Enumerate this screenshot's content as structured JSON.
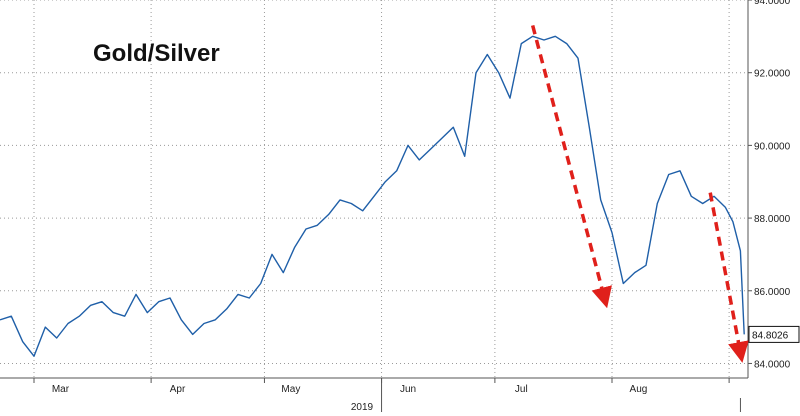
{
  "chart_data": {
    "type": "line",
    "title": "Gold/Silver",
    "year_label": "2019",
    "last_value_label": "84.8026",
    "y_ticks": [
      "94.0000",
      "92.0000",
      "90.0000",
      "88.0000",
      "86.0000",
      "84.0000"
    ],
    "y_tick_values": [
      94,
      92,
      90,
      88,
      86,
      84
    ],
    "ylim": [
      83.6,
      94.0
    ],
    "x_ticks": [
      "Mar",
      "Apr",
      "May",
      "Jun",
      "Jul",
      "Aug"
    ],
    "x_tick_dates": [
      "2019-03-08",
      "2019-04-08",
      "2019-05-08",
      "2019-06-08",
      "2019-07-08",
      "2019-08-08"
    ],
    "xlim": [
      "2019-02-20",
      "2019-09-06"
    ],
    "grid": true,
    "series": [
      {
        "color": "#1f5fa8",
        "x": [
          "2019-02-20",
          "2019-02-23",
          "2019-02-26",
          "2019-03-01",
          "2019-03-04",
          "2019-03-07",
          "2019-03-10",
          "2019-03-13",
          "2019-03-16",
          "2019-03-19",
          "2019-03-22",
          "2019-03-25",
          "2019-03-28",
          "2019-03-31",
          "2019-04-03",
          "2019-04-06",
          "2019-04-09",
          "2019-04-12",
          "2019-04-15",
          "2019-04-18",
          "2019-04-21",
          "2019-04-24",
          "2019-04-27",
          "2019-04-30",
          "2019-05-03",
          "2019-05-06",
          "2019-05-09",
          "2019-05-12",
          "2019-05-15",
          "2019-05-18",
          "2019-05-21",
          "2019-05-24",
          "2019-05-27",
          "2019-05-30",
          "2019-06-02",
          "2019-06-05",
          "2019-06-08",
          "2019-06-11",
          "2019-06-14",
          "2019-06-17",
          "2019-06-20",
          "2019-06-23",
          "2019-06-26",
          "2019-06-29",
          "2019-07-02",
          "2019-07-05",
          "2019-07-08",
          "2019-07-11",
          "2019-07-14",
          "2019-07-17",
          "2019-07-20",
          "2019-07-23",
          "2019-07-26",
          "2019-07-29",
          "2019-08-01",
          "2019-08-04",
          "2019-08-07",
          "2019-08-10",
          "2019-08-13",
          "2019-08-16",
          "2019-08-19",
          "2019-08-22",
          "2019-08-25",
          "2019-08-28",
          "2019-08-31",
          "2019-09-02",
          "2019-09-04",
          "2019-09-05"
        ],
        "values": [
          85.2,
          85.3,
          84.6,
          84.2,
          85.0,
          84.7,
          85.1,
          85.3,
          85.6,
          85.7,
          85.4,
          85.3,
          85.9,
          85.4,
          85.7,
          85.8,
          85.2,
          84.8,
          85.1,
          85.2,
          85.5,
          85.9,
          85.8,
          86.2,
          87.0,
          86.5,
          87.2,
          87.7,
          87.8,
          88.1,
          88.5,
          88.4,
          88.2,
          88.6,
          89.0,
          89.3,
          90.0,
          89.6,
          89.9,
          90.2,
          90.5,
          89.7,
          92.0,
          92.5,
          92.0,
          91.3,
          92.8,
          93.0,
          92.9,
          93.0,
          92.8,
          92.4,
          90.5,
          88.5,
          87.6,
          86.2,
          86.5,
          86.7,
          88.4,
          89.2,
          89.3,
          88.6,
          88.4,
          88.6,
          88.3,
          87.9,
          87.1,
          84.8
        ]
      }
    ],
    "annotations": [
      {
        "type": "arrow",
        "color": "#e0201b",
        "style": "dashed",
        "from": [
          "2019-07-11",
          93.3
        ],
        "to": [
          "2019-07-30",
          85.8
        ]
      },
      {
        "type": "arrow",
        "color": "#e0201b",
        "style": "dashed",
        "from": [
          "2019-08-27",
          88.7
        ],
        "to": [
          "2019-09-04",
          84.3
        ]
      }
    ]
  }
}
